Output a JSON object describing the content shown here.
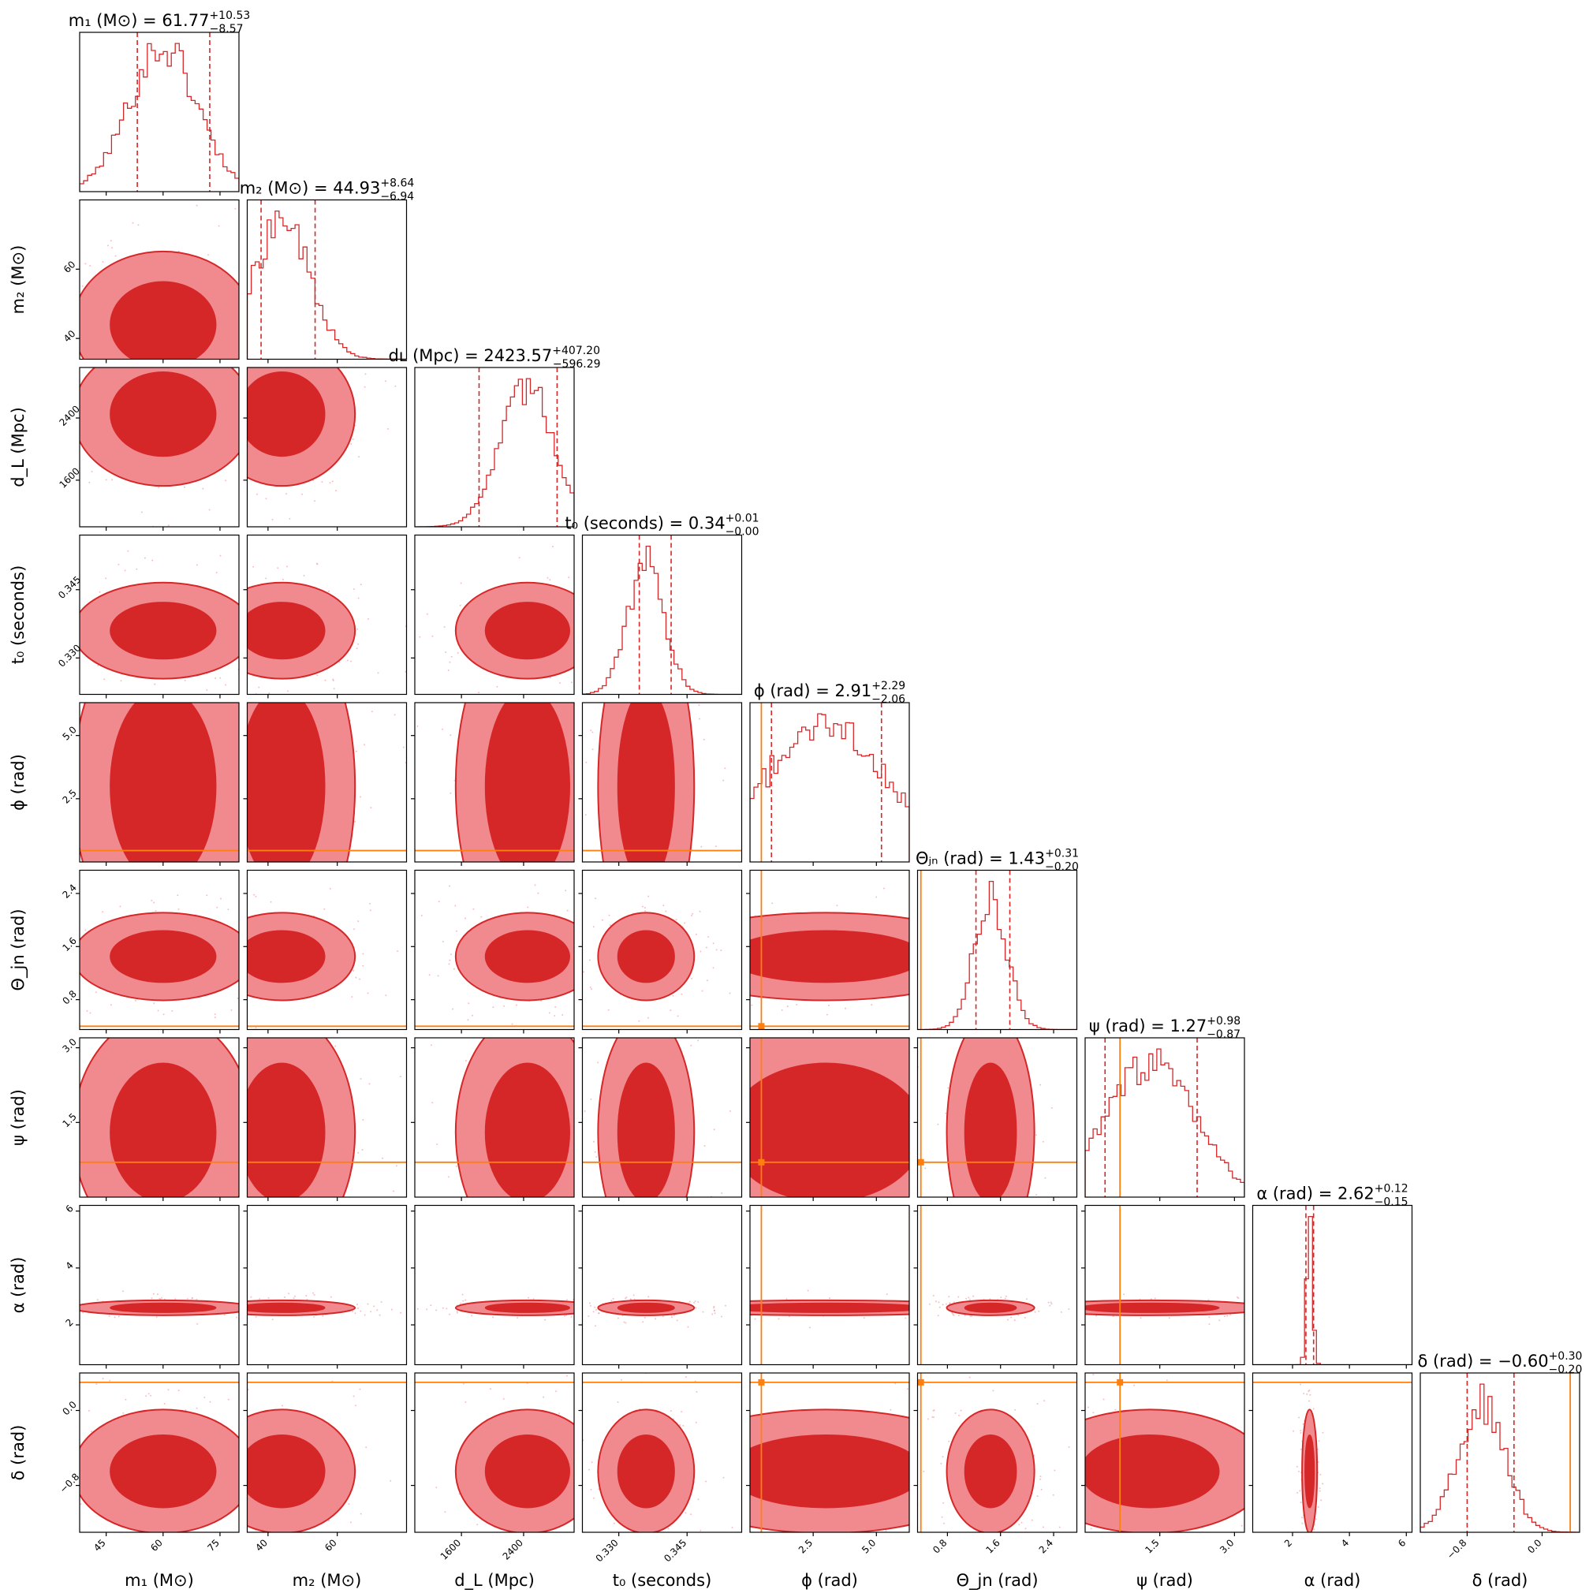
{
  "figure": {
    "colors": {
      "posterior": "#d62728",
      "posterior_light": "#f08a8f",
      "truth": "#ff7f0e",
      "frame": "#000000"
    },
    "params": [
      {
        "name": "m1",
        "axis_label": "m₁ (M⊙)",
        "title": "m₁ (M⊙) = 61.77 +10.53 −8.57",
        "title_main": "m₁ (M⊙) = 61.77",
        "title_sup": "+10.53",
        "title_sub": "−8.57",
        "range": [
          38,
          80
        ],
        "ticks": [
          45,
          60,
          75
        ],
        "tick_labels": [
          "45",
          "60",
          "75"
        ],
        "median": 61.77,
        "quantiles": [
          53.2,
          72.3
        ],
        "truth": null,
        "mean": 60,
        "sd": 9
      },
      {
        "name": "m2",
        "axis_label": "m₂ (M⊙)",
        "title": "m₂ (M⊙) = 44.93 +8.64 −6.94",
        "title_main": "m₂ (M⊙) = 44.93",
        "title_sup": "+8.64",
        "title_sub": "−6.94",
        "range": [
          34,
          80
        ],
        "ticks": [
          40,
          60
        ],
        "tick_labels": [
          "40",
          "60"
        ],
        "median": 44.93,
        "quantiles": [
          38.0,
          53.6
        ],
        "truth": null,
        "mean": 44,
        "sd": 8
      },
      {
        "name": "dL",
        "axis_label": "d_L (Mpc)",
        "title": "d_L (Mpc) = 2423.57 +407.20 −596.29",
        "title_main": "dʟ (Mpc) = 2423.57",
        "title_sup": "+407.20",
        "title_sub": "−596.29",
        "range": [
          1000,
          3050
        ],
        "ticks": [
          1600,
          2400
        ],
        "tick_labels": [
          "1600",
          "2400"
        ],
        "median": 2423.57,
        "quantiles": [
          1827,
          2831
        ],
        "truth": null,
        "mean": 2450,
        "sd": 350
      },
      {
        "name": "t0",
        "axis_label": "t₀ (seconds)",
        "title": "t₀ (seconds) = 0.34 +0.01 −0.00",
        "title_main": "t₀ (seconds) = 0.34",
        "title_sup": "+0.01",
        "title_sub": "−0.00",
        "range": [
          0.322,
          0.357
        ],
        "ticks": [
          0.33,
          0.345
        ],
        "tick_labels": [
          "0.330",
          "0.345"
        ],
        "median": 0.34,
        "quantiles": [
          0.3345,
          0.3415
        ],
        "truth": null,
        "mean": 0.336,
        "sd": 0.004
      },
      {
        "name": "phi",
        "axis_label": "ϕ (rad)",
        "title": "ϕ (rad) = 2.91 +2.29 −2.06",
        "title_main": "ϕ (rad) = 2.91",
        "title_sup": "+2.29",
        "title_sub": "−2.06",
        "range": [
          0.0,
          6.3
        ],
        "ticks": [
          2.5,
          5.0
        ],
        "tick_labels": [
          "2.5",
          "5.0"
        ],
        "median": 2.91,
        "quantiles": [
          0.85,
          5.2
        ],
        "truth": 0.45,
        "mean": 3.0,
        "sd": 2.5
      },
      {
        "name": "theta_jn",
        "axis_label": "Θ_jn (rad)",
        "title": "Θ_jn (rad) = 1.43 +0.31 −0.20",
        "title_main": "Θⱼₙ (rad) = 1.43",
        "title_sup": "+0.31",
        "title_sub": "−0.20",
        "range": [
          0.35,
          2.75
        ],
        "ticks": [
          0.8,
          1.6,
          2.4
        ],
        "tick_labels": [
          "0.8",
          "1.6",
          "2.4"
        ],
        "median": 1.43,
        "quantiles": [
          1.23,
          1.74
        ],
        "truth": 0.4,
        "mean": 1.45,
        "sd": 0.25
      },
      {
        "name": "psi",
        "axis_label": "ψ (rad)",
        "title": "ψ (rad) = 1.27 +0.98 −0.87",
        "title_main": "ψ (rad) = 1.27",
        "title_sup": "+0.98",
        "title_sub": "−0.87",
        "range": [
          0.0,
          3.2
        ],
        "ticks": [
          1.5,
          3.0
        ],
        "tick_labels": [
          "1.5",
          "3.0"
        ],
        "median": 1.27,
        "quantiles": [
          0.4,
          2.25
        ],
        "truth": 0.7,
        "mean": 1.3,
        "sd": 0.9
      },
      {
        "name": "alpha",
        "axis_label": "α (rad)",
        "title": "α (rad) = 2.62 +0.12 −0.15",
        "title_main": "α (rad) = 2.62",
        "title_sup": "+0.12",
        "title_sub": "−0.15",
        "range": [
          0.6,
          6.2
        ],
        "ticks": [
          2,
          4,
          6
        ],
        "tick_labels": [
          "2",
          "4",
          "6"
        ],
        "median": 2.62,
        "quantiles": [
          2.47,
          2.74
        ],
        "truth": null,
        "mean": 2.6,
        "sd": 0.1
      },
      {
        "name": "delta",
        "axis_label": "δ (rad)",
        "title": "δ (rad) = −0.60 +0.30 −0.20",
        "title_main": "δ (rad) = −0.60",
        "title_sup": "+0.30",
        "title_sub": "−0.20",
        "range": [
          -1.3,
          0.4
        ],
        "ticks": [
          -0.8,
          0.0
        ],
        "tick_labels": [
          "−0.8",
          "0.0"
        ],
        "median": -0.6,
        "quantiles": [
          -0.8,
          -0.3
        ],
        "truth": 0.3,
        "mean": -0.65,
        "sd": 0.25
      }
    ]
  },
  "chart_data": {
    "type": "corner",
    "description": "posterior corner plot, 9 parameters",
    "parameters": [
      "m1",
      "m2",
      "dL",
      "t0",
      "phi",
      "theta_jn",
      "psi",
      "alpha",
      "delta"
    ],
    "medians": [
      61.77,
      44.93,
      2423.57,
      0.34,
      2.91,
      1.43,
      1.27,
      2.62,
      -0.6
    ],
    "plus_errors": [
      10.53,
      8.64,
      407.2,
      0.01,
      2.29,
      0.31,
      0.98,
      0.12,
      0.3
    ],
    "minus_errors": [
      8.57,
      6.94,
      596.29,
      0.0,
      2.06,
      0.2,
      0.87,
      0.15,
      0.2
    ],
    "truth_values": {
      "phi": 0.45,
      "theta_jn": 0.4,
      "psi": 0.7,
      "delta": 0.3
    }
  }
}
